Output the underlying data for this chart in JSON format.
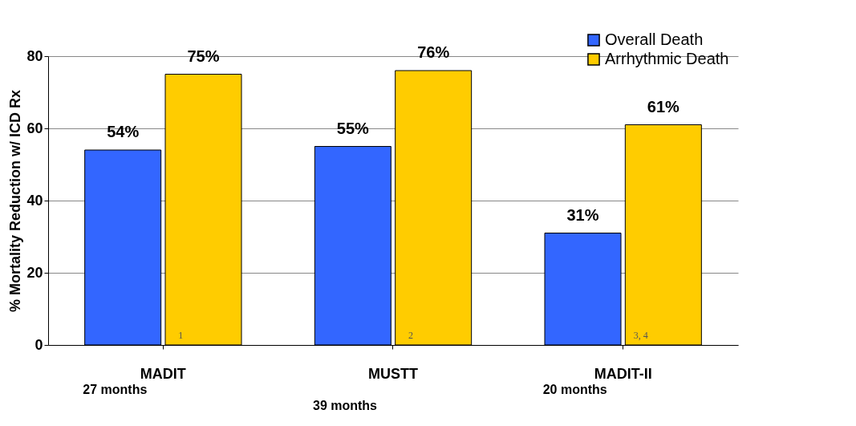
{
  "chart_data": {
    "type": "bar",
    "ylabel": "% Mortality Reduction w/ ICD Rx",
    "categories": [
      "MADIT",
      "MUSTT",
      "MADIT-II"
    ],
    "series": [
      {
        "name": "Overall Death",
        "color": "#3366ff",
        "values": [
          54,
          55,
          31
        ],
        "value_labels": [
          "54%",
          "55%",
          "31%"
        ]
      },
      {
        "name": "Arrhythmic Death",
        "color": "#ffcc00",
        "values": [
          75,
          76,
          61
        ],
        "value_labels": [
          "75%",
          "76%",
          "61%"
        ]
      }
    ],
    "ylim": [
      0,
      80
    ],
    "yticks": [
      0,
      20,
      40,
      60,
      80
    ],
    "grid": "y",
    "legend": "top right",
    "annotations": [
      "27 months",
      "39 months",
      "20 months",
      "1",
      "2",
      "3, 4"
    ]
  }
}
